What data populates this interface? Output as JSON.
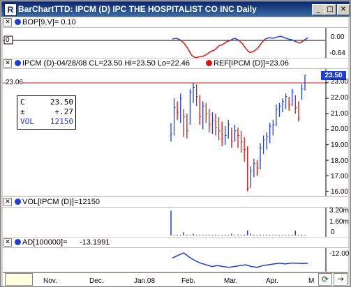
{
  "window": {
    "title": "BarChartTTD: IPCM (D) IPC THE HOSPITALIST CO INC Daily",
    "icon_letter": "R",
    "buttons": {
      "minimize": "_",
      "maximize": "□",
      "close": "✕"
    }
  },
  "bop_panel": {
    "header": "BOP[9,V]= 0.10",
    "left_value": "0",
    "y_ticks": [
      "0.00",
      "-0.64"
    ],
    "colors": {
      "positive": "#1c3fd6",
      "negative": "#e01010"
    }
  },
  "price_panel": {
    "header": "IPCM (D)-04/28/08 CL=23.50 Hi=23.50 Lo=22.46",
    "ref_header": "REF[IPCM (D)]=23.06",
    "ref_value": "23.06",
    "last_price_tag": "23.50",
    "y_ticks": [
      "23.00",
      "22.00",
      "21.00",
      "20.00",
      "19.00",
      "18.00",
      "17.00",
      "16.00"
    ],
    "info": [
      {
        "k": "C",
        "v": "23.50",
        "color": "#000000"
      },
      {
        "k": "±",
        "v": "+.27",
        "color": "#000000"
      },
      {
        "k": "VOL",
        "v": "12150",
        "color": "#1c3fd6"
      }
    ]
  },
  "vol_panel": {
    "header": "VOL[IPCM (D)]=12150",
    "y_ticks": [
      "3.20m",
      "1.60m",
      "0"
    ]
  },
  "ad_panel": {
    "header": "AD[100000]=",
    "header_value": "-13.1991",
    "y_ticks": [
      "-12.00"
    ]
  },
  "x_axis": {
    "labels": [
      "Nov.",
      "Dec.",
      "Jan.08",
      "Feb.",
      "Mar.",
      "Apr.",
      "M"
    ]
  },
  "footer": {
    "refresh_icon": "⟳",
    "arrow_icon": "→"
  },
  "chart_data": {
    "type": "bar",
    "title": "IPCM (D) IPC THE HOSPITALIST CO INC Daily",
    "ylim": [
      15.8,
      23.8
    ],
    "reference_line": 23.06,
    "series": [
      {
        "name": "IPCM (D)",
        "ohlc_hl_c": [
          [
            20.4,
            19.2,
            19.7
          ],
          [
            22.0,
            19.6,
            21.4
          ],
          [
            21.8,
            20.6,
            21.1
          ],
          [
            22.3,
            20.4,
            22.0
          ],
          [
            21.3,
            19.5,
            20.8
          ],
          [
            21.0,
            19.4,
            19.9
          ],
          [
            22.6,
            20.3,
            22.4
          ],
          [
            23.0,
            21.7,
            22.7
          ],
          [
            22.9,
            21.5,
            22.1
          ],
          [
            22.2,
            20.3,
            20.8
          ],
          [
            21.8,
            20.0,
            21.5
          ],
          [
            21.7,
            20.4,
            21.0
          ],
          [
            21.3,
            19.8,
            20.3
          ],
          [
            21.1,
            19.7,
            20.6
          ],
          [
            21.0,
            19.6,
            20.1
          ],
          [
            20.8,
            19.3,
            19.9
          ],
          [
            20.5,
            18.9,
            19.4
          ],
          [
            20.2,
            19.0,
            19.6
          ],
          [
            20.6,
            19.4,
            20.3
          ],
          [
            20.1,
            18.8,
            19.2
          ],
          [
            20.3,
            19.2,
            19.9
          ],
          [
            20.1,
            18.8,
            19.6
          ],
          [
            19.9,
            18.5,
            19.2
          ],
          [
            19.5,
            17.9,
            18.7
          ],
          [
            18.9,
            16.0,
            16.2
          ],
          [
            17.6,
            16.2,
            17.3
          ],
          [
            18.1,
            16.9,
            17.8
          ],
          [
            18.0,
            17.0,
            17.5
          ],
          [
            19.1,
            17.4,
            18.8
          ],
          [
            19.6,
            18.4,
            19.3
          ],
          [
            19.8,
            18.7,
            19.5
          ],
          [
            20.4,
            19.1,
            20.2
          ],
          [
            20.6,
            19.6,
            20.3
          ],
          [
            21.6,
            20.2,
            21.3
          ],
          [
            21.7,
            20.8,
            21.5
          ],
          [
            22.0,
            21.1,
            21.8
          ],
          [
            22.3,
            21.3,
            22.1
          ],
          [
            22.1,
            21.2,
            21.6
          ],
          [
            22.6,
            21.5,
            22.4
          ],
          [
            22.2,
            21.0,
            21.4
          ],
          [
            21.8,
            20.5,
            20.7
          ],
          [
            22.9,
            21.9,
            22.6
          ],
          [
            23.5,
            22.5,
            23.5
          ]
        ]
      }
    ],
    "volume": [
      3.0,
      0.05,
      0.1,
      0.05,
      0.4,
      0.1,
      0.05,
      0.2,
      0.05,
      0.1,
      0.05,
      0.1,
      0.05,
      0.05,
      0.1,
      0.05,
      0.05,
      0.1,
      0.05,
      0.2,
      0.05,
      0.1,
      0.05,
      0.1,
      0.6,
      0.2,
      0.1,
      0.05,
      0.1,
      0.05,
      0.1,
      0.05,
      0.1,
      0.05,
      0.05,
      0.1,
      0.05,
      0.1,
      0.05,
      0.6,
      0.05,
      0.1,
      0.05
    ],
    "bop": [
      0.05,
      0.08,
      0.02,
      -0.1,
      -0.3,
      -0.55,
      -0.64,
      -0.6,
      -0.58,
      -0.5,
      -0.4,
      -0.35,
      -0.2,
      -0.15,
      -0.05,
      0.0,
      0.08,
      0.02,
      -0.1,
      -0.3,
      -0.45,
      -0.4,
      -0.3,
      -0.1,
      0.05,
      0.1,
      0.08,
      0.12,
      0.15,
      0.1,
      0.05,
      0.02,
      -0.05,
      -0.1,
      0.0,
      0.1
    ],
    "ad": [
      -12.6,
      -12.3,
      -12.0,
      -12.5,
      -12.9,
      -13.2,
      -13.4,
      -13.6,
      -13.5,
      -13.6,
      -13.7,
      -13.6,
      -13.5,
      -13.4,
      -13.6,
      -13.7,
      -13.5,
      -13.4,
      -13.3,
      -13.2,
      -13.3,
      -13.2,
      -13.2,
      -13.25,
      -13.2
    ]
  }
}
